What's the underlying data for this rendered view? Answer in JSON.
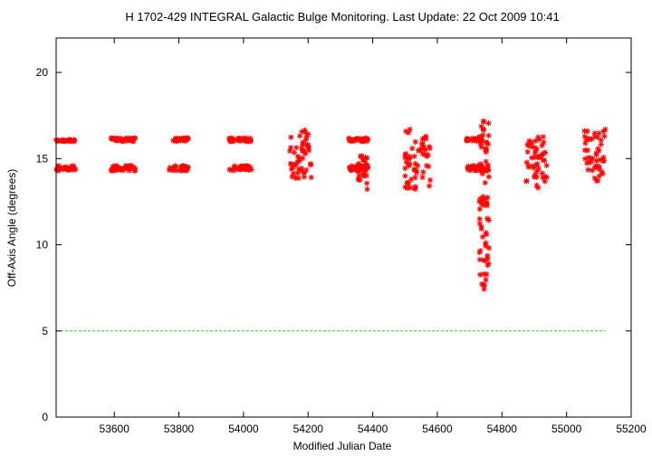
{
  "chart_data": {
    "type": "scatter",
    "title": "H 1702-429   INTEGRAL Galactic Bulge Monitoring.  Last Update: 22 Oct 2009 10:41",
    "xlabel": "Modified Julian Date",
    "ylabel": "Off-Axis Angle (degrees)",
    "xlim": [
      53420,
      55200
    ],
    "ylim": [
      0,
      22
    ],
    "xticks": [
      53600,
      53800,
      54000,
      54200,
      54400,
      54600,
      54800,
      55000,
      55200
    ],
    "yticks": [
      0,
      5,
      10,
      15,
      20
    ],
    "grid": false,
    "reference_line": {
      "y": 5,
      "x_range": [
        53420,
        55120
      ],
      "color": "#33cc33"
    },
    "marker_color": "#ff0000",
    "marker": "asterisk",
    "series": [
      {
        "clusters": [
          {
            "x": [
              53420,
              53480
            ],
            "y": [
              16.0,
              16.1
            ]
          },
          {
            "x": [
              53420,
              53480
            ],
            "y": [
              14.3,
              14.6
            ]
          },
          {
            "x": [
              53590,
              53665
            ],
            "y": [
              16.0,
              16.2
            ]
          },
          {
            "x": [
              53590,
              53665
            ],
            "y": [
              14.3,
              14.6
            ]
          },
          {
            "x": [
              53770,
              53830
            ],
            "y": [
              16.0,
              16.2
            ]
          },
          {
            "x": [
              53770,
              53830
            ],
            "y": [
              14.3,
              14.6
            ]
          },
          {
            "x": [
              53955,
              54025
            ],
            "y": [
              16.0,
              16.2
            ]
          },
          {
            "x": [
              53955,
              54025
            ],
            "y": [
              14.3,
              14.6
            ]
          },
          {
            "x": [
              54140,
              54210
            ],
            "y": [
              13.8,
              16.7
            ]
          },
          {
            "x": [
              54325,
              54385
            ],
            "y": [
              16.0,
              16.2
            ]
          },
          {
            "x": [
              54325,
              54385
            ],
            "y": [
              14.3,
              14.6
            ]
          },
          {
            "x": [
              54355,
              54385
            ],
            "y": [
              13.2,
              15.2
            ]
          },
          {
            "x": [
              54500,
              54580
            ],
            "y": [
              13.2,
              16.8
            ]
          },
          {
            "x": [
              54690,
              54740
            ],
            "y": [
              16.0,
              16.2
            ]
          },
          {
            "x": [
              54690,
              54740
            ],
            "y": [
              14.3,
              14.6
            ]
          },
          {
            "x": [
              54730,
              54760
            ],
            "y": [
              7.3,
              17.3
            ]
          },
          {
            "x": [
              54875,
              54940
            ],
            "y": [
              13.3,
              16.3
            ]
          },
          {
            "x": [
              55055,
              55120
            ],
            "y": [
              13.7,
              16.7
            ]
          }
        ]
      }
    ]
  }
}
